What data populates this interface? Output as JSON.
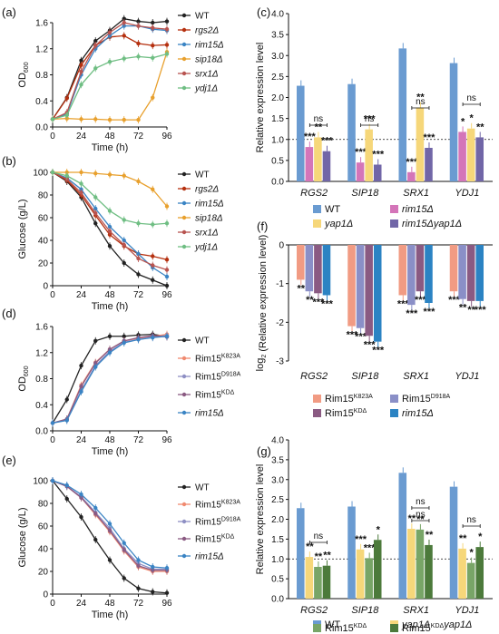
{
  "panel_labels": [
    "(a)",
    "(b)",
    "(c)",
    "(d)",
    "(e)",
    "(f)",
    "(g)"
  ],
  "colors": {
    "WT": "#222222",
    "rgs2": "#b5300f",
    "rim15": "#3a84c4",
    "sip18": "#e8a02d",
    "srx1": "#b85450",
    "ydj1": "#6fbe83",
    "K823A": "#f08a70",
    "D918A": "#8e8fc4",
    "KD": "#8a5a82",
    "bar_WT": "#6a9bd1",
    "bar_rim15": "#d475b9",
    "bar_yap1": "#f6d77a",
    "bar_rim15yap1": "#7166a7",
    "bar_KD": "#78a567",
    "bar_KDyap1": "#4c7a3b",
    "bar_f_K823A": "#f19b83",
    "bar_f_KD": "#8a5a82",
    "bar_f_D918A": "#8a8fc7",
    "bar_f_rim15": "#2b83c3"
  },
  "chart_data": [
    {
      "panel": "(a)",
      "type": "line",
      "xlabel": "Time (h)",
      "ylabel": "OD600",
      "xlim": [
        0,
        96
      ],
      "ylim": [
        0,
        1.6
      ],
      "xticks": [
        "0",
        "24",
        "48",
        "72",
        "96"
      ],
      "yticks": [
        "0.0",
        "0.4",
        "0.8",
        "1.2",
        "1.6"
      ],
      "x": [
        0,
        12,
        24,
        36,
        48,
        60,
        72,
        84,
        96
      ],
      "series": [
        {
          "name": "WT",
          "key": "WT",
          "values": [
            0.12,
            0.45,
            1.02,
            1.32,
            1.48,
            1.66,
            1.62,
            1.6,
            1.62
          ]
        },
        {
          "name": "rgs2Δ",
          "key": "rgs2",
          "values": [
            0.12,
            0.44,
            0.95,
            1.25,
            1.38,
            1.4,
            1.28,
            1.25,
            1.26
          ]
        },
        {
          "name": "rim15Δ",
          "key": "rim15",
          "values": [
            0.12,
            0.2,
            0.8,
            1.2,
            1.4,
            1.55,
            1.55,
            1.5,
            1.48
          ]
        },
        {
          "name": "sip18Δ",
          "key": "sip18",
          "values": [
            0.12,
            0.13,
            0.12,
            0.12,
            0.11,
            0.11,
            0.11,
            0.45,
            1.15
          ]
        },
        {
          "name": "srx1Δ",
          "key": "srx1",
          "values": [
            0.12,
            0.22,
            0.85,
            1.25,
            1.45,
            1.6,
            1.55,
            1.52,
            1.5
          ]
        },
        {
          "name": "ydj1Δ",
          "key": "ydj1",
          "values": [
            0.12,
            0.18,
            0.65,
            0.9,
            1.0,
            1.05,
            1.08,
            1.06,
            1.12
          ]
        }
      ]
    },
    {
      "panel": "(b)",
      "type": "line",
      "xlabel": "Time (h)",
      "ylabel": "Glucose (g/L)",
      "xlim": [
        0,
        96
      ],
      "ylim": [
        0,
        100
      ],
      "xticks": [
        "0",
        "24",
        "48",
        "72",
        "96"
      ],
      "yticks": [
        "0",
        "20",
        "40",
        "60",
        "80",
        "100"
      ],
      "x": [
        0,
        12,
        24,
        36,
        48,
        60,
        72,
        84,
        96
      ],
      "series": [
        {
          "name": "WT",
          "key": "WT",
          "values": [
            100,
            92,
            78,
            55,
            35,
            20,
            10,
            5,
            0
          ]
        },
        {
          "name": "rgs2Δ",
          "key": "rgs2",
          "values": [
            100,
            93,
            80,
            62,
            45,
            35,
            28,
            26,
            23
          ]
        },
        {
          "name": "rim15Δ",
          "key": "rim15",
          "values": [
            100,
            95,
            85,
            68,
            52,
            40,
            28,
            16,
            8
          ]
        },
        {
          "name": "sip18Δ",
          "key": "sip18",
          "values": [
            100,
            100,
            100,
            99,
            98,
            97,
            92,
            85,
            70
          ]
        },
        {
          "name": "srx1Δ",
          "key": "srx1",
          "values": [
            100,
            94,
            82,
            64,
            48,
            36,
            24,
            18,
            14
          ]
        },
        {
          "name": "ydj1Δ",
          "key": "ydj1",
          "values": [
            100,
            97,
            90,
            78,
            66,
            58,
            55,
            54,
            55
          ]
        }
      ]
    },
    {
      "panel": "(c)",
      "type": "bar",
      "ylabel": "Relative expression level",
      "ylim": [
        0,
        4
      ],
      "yticks": [
        "0.0",
        "0.5",
        "1.0",
        "1.5",
        "2.0",
        "2.5",
        "3.0",
        "3.5",
        "4.0"
      ],
      "categories": [
        "RGS2",
        "SIP18",
        "SRX1",
        "YDJ1"
      ],
      "series": [
        {
          "name": "WT",
          "key": "bar_WT",
          "values": [
            2.28,
            2.32,
            3.17,
            2.82
          ]
        },
        {
          "name": "rim15Δ",
          "key": "bar_rim15",
          "values": [
            0.82,
            0.45,
            0.22,
            1.18
          ]
        },
        {
          "name": "yap1Δ",
          "key": "bar_yap1",
          "values": [
            1.05,
            1.24,
            1.76,
            1.26
          ]
        },
        {
          "name": "rim15Δyap1Δ",
          "key": "bar_rim15yap1",
          "values": [
            0.72,
            0.4,
            0.8,
            1.05
          ]
        }
      ],
      "significance": [
        [
          "***",
          "**",
          "***"
        ],
        [
          "***",
          "***",
          "***"
        ],
        [
          "***",
          "**",
          "***"
        ],
        [
          "*",
          "*",
          "**"
        ]
      ],
      "ns_brackets": [
        "ns",
        "ns",
        "ns",
        "ns"
      ],
      "reference_line": 1.0
    },
    {
      "panel": "(d)",
      "type": "line",
      "xlabel": "Time (h)",
      "ylabel": "OD600",
      "xlim": [
        0,
        96
      ],
      "ylim": [
        0,
        1.6
      ],
      "xticks": [
        "0",
        "24",
        "48",
        "72",
        "96"
      ],
      "yticks": [
        "0.0",
        "0.4",
        "0.8",
        "1.2",
        "1.6"
      ],
      "x": [
        0,
        12,
        24,
        36,
        48,
        60,
        72,
        84,
        96
      ],
      "series": [
        {
          "name": "WT",
          "key": "WT",
          "values": [
            0.12,
            0.48,
            1.0,
            1.38,
            1.45,
            1.45,
            1.47,
            1.48,
            1.45
          ]
        },
        {
          "name": "Rim15K823A",
          "key": "K823A",
          "values": [
            0.12,
            0.18,
            0.7,
            1.05,
            1.25,
            1.38,
            1.42,
            1.45,
            1.48
          ]
        },
        {
          "name": "Rim15D918A",
          "key": "D918A",
          "values": [
            0.12,
            0.17,
            0.62,
            1.0,
            1.22,
            1.36,
            1.4,
            1.44,
            1.46
          ]
        },
        {
          "name": "Rim15KDΔ",
          "key": "KD",
          "values": [
            0.12,
            0.18,
            0.68,
            1.04,
            1.25,
            1.38,
            1.43,
            1.46,
            1.44
          ]
        },
        {
          "name": "rim15Δ",
          "key": "rim15",
          "values": [
            0.12,
            0.16,
            0.6,
            0.98,
            1.2,
            1.35,
            1.4,
            1.43,
            1.45
          ]
        }
      ]
    },
    {
      "panel": "(e)",
      "type": "line",
      "xlabel": "Time (h)",
      "ylabel": "Glucose (g/L)",
      "xlim": [
        0,
        96
      ],
      "ylim": [
        0,
        100
      ],
      "xticks": [
        "0",
        "24",
        "48",
        "72",
        "96"
      ],
      "yticks": [
        "0",
        "20",
        "40",
        "60",
        "80",
        "100"
      ],
      "x": [
        0,
        12,
        24,
        36,
        48,
        60,
        72,
        84,
        96
      ],
      "series": [
        {
          "name": "WT",
          "key": "WT",
          "values": [
            100,
            84,
            68,
            48,
            30,
            14,
            5,
            2,
            1
          ]
        },
        {
          "name": "Rim15K823A",
          "key": "K823A",
          "values": [
            100,
            95,
            85,
            70,
            55,
            38,
            24,
            20,
            20
          ]
        },
        {
          "name": "Rim15D918A",
          "key": "D918A",
          "values": [
            100,
            95,
            86,
            72,
            58,
            40,
            27,
            22,
            22
          ]
        },
        {
          "name": "Rim15KDΔ",
          "key": "KD",
          "values": [
            100,
            95,
            85,
            71,
            56,
            39,
            25,
            21,
            21
          ]
        },
        {
          "name": "rim15Δ",
          "key": "rim15",
          "values": [
            100,
            96,
            88,
            76,
            62,
            45,
            30,
            24,
            23
          ]
        }
      ]
    },
    {
      "panel": "(f)",
      "type": "bar",
      "ylabel": "log2 (Relative expression level)",
      "ylim": [
        -3,
        0
      ],
      "yticks": [
        "0",
        "-1",
        "-2",
        "-3"
      ],
      "categories": [
        "RGS2",
        "SIP18",
        "SRX1",
        "YDJ1"
      ],
      "series": [
        {
          "name": "Rim15K823A",
          "key": "bar_f_K823A",
          "values": [
            -0.9,
            -2.1,
            -1.3,
            -1.2
          ]
        },
        {
          "name": "Rim15D918A",
          "key": "bar_f_D918A",
          "values": [
            -1.2,
            -2.15,
            -1.55,
            -1.4
          ]
        },
        {
          "name": "Rim15KDΔ",
          "key": "bar_f_KD",
          "values": [
            -1.25,
            -2.35,
            -1.2,
            -1.45
          ]
        },
        {
          "name": "rim15Δ",
          "key": "bar_f_rim15",
          "values": [
            -1.3,
            -2.5,
            -1.5,
            -1.45
          ]
        }
      ],
      "significance": [
        [
          "**",
          "**",
          "***",
          "***"
        ],
        [
          "***",
          "***",
          "***",
          "***"
        ],
        [
          "***",
          "***",
          "***",
          "***"
        ],
        [
          "***",
          "**",
          "**",
          "***"
        ]
      ]
    },
    {
      "panel": "(g)",
      "type": "bar",
      "ylabel": "Relative expression level",
      "ylim": [
        0,
        4
      ],
      "yticks": [
        "0.0",
        "0.5",
        "1.0",
        "1.5",
        "2.0",
        "2.5",
        "3.0",
        "3.5",
        "4.0"
      ],
      "categories": [
        "RGS2",
        "SIP18",
        "SRX1",
        "YDJ1"
      ],
      "series": [
        {
          "name": "WT",
          "key": "bar_WT",
          "values": [
            2.28,
            2.32,
            3.17,
            2.82
          ]
        },
        {
          "name": "yap1Δ",
          "key": "bar_yap1",
          "values": [
            1.05,
            1.24,
            1.76,
            1.26
          ]
        },
        {
          "name": "Rim15KDΔ",
          "key": "bar_KD",
          "values": [
            0.8,
            1.02,
            1.74,
            0.9
          ]
        },
        {
          "name": "Rim15KDΔyap1Δ",
          "key": "bar_KDyap1",
          "values": [
            0.83,
            1.48,
            1.35,
            1.3
          ]
        }
      ],
      "significance": [
        [
          "**",
          "**",
          "**"
        ],
        [
          "***",
          "***",
          "*"
        ],
        [
          "**",
          "**",
          "**"
        ],
        [
          "**",
          "*",
          "*"
        ]
      ],
      "ns_brackets": [
        "ns",
        "",
        "ns / ns",
        "ns"
      ],
      "reference_line": 1.0
    }
  ]
}
